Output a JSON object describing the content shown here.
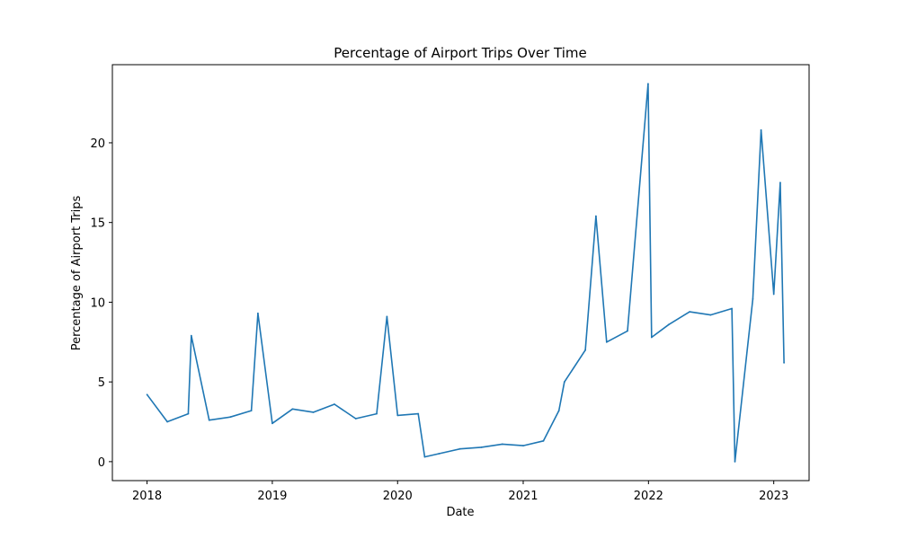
{
  "chart_data": {
    "type": "line",
    "title": "Percentage of Airport Trips Over Time",
    "xlabel": "Date",
    "ylabel": "Percentage of Airport Trips",
    "x_ticks": [
      "2018",
      "2019",
      "2020",
      "2021",
      "2022",
      "2023"
    ],
    "y_ticks": [
      0,
      5,
      10,
      15,
      20
    ],
    "xlim": [
      "2017-09-22",
      "2023-04-14"
    ],
    "ylim": [
      -1.19,
      24.9
    ],
    "grid": false,
    "legend": "none",
    "color": "#1f77b4",
    "series": [
      {
        "x": [
          "2018-01-01",
          "2018-03-01",
          "2018-05-01",
          "2018-05-10",
          "2018-07-01",
          "2018-09-01",
          "2018-11-01",
          "2018-11-20",
          "2019-01-01",
          "2019-03-01",
          "2019-05-01",
          "2019-07-01",
          "2019-09-01",
          "2019-11-01",
          "2019-12-01",
          "2020-01-01",
          "2020-03-01",
          "2020-03-20",
          "2020-05-01",
          "2020-07-01",
          "2020-09-01",
          "2020-11-01",
          "2021-01-01",
          "2021-03-01",
          "2021-04-15",
          "2021-05-01",
          "2021-07-01",
          "2021-08-01",
          "2021-09-01",
          "2021-11-01",
          "2021-12-31",
          "2022-01-10",
          "2022-03-01",
          "2022-05-01",
          "2022-07-01",
          "2022-09-01",
          "2022-09-10",
          "2022-11-01",
          "2022-11-25",
          "2023-01-01",
          "2023-01-20",
          "2023-01-31"
        ],
        "values": [
          4.2,
          2.5,
          3.0,
          7.9,
          2.6,
          2.8,
          3.2,
          9.3,
          2.4,
          3.3,
          3.1,
          3.6,
          2.7,
          3.0,
          9.1,
          2.9,
          3.0,
          0.3,
          0.5,
          0.8,
          0.9,
          1.1,
          1.0,
          1.3,
          3.2,
          5.0,
          7.0,
          15.4,
          7.5,
          8.2,
          23.7,
          7.8,
          8.6,
          9.4,
          9.2,
          9.6,
          0.0,
          10.2,
          20.8,
          10.5,
          17.5,
          6.2
        ]
      }
    ]
  }
}
